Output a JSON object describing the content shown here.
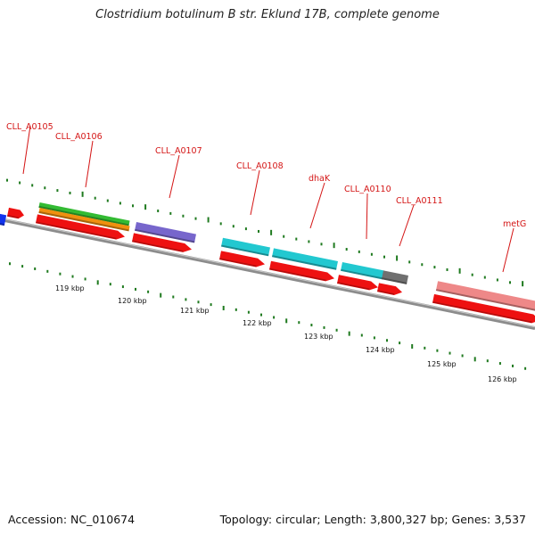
{
  "title": "Clostridium botulinum B str. Eklund 17B, complete genome",
  "footer": {
    "accession": "Accession: NC_010674",
    "topology": "Topology: circular; Length: 3,800,327 bp; Genes: 3,537"
  },
  "colors": {
    "backbone": "#8c8c8c",
    "label": "#d41515",
    "tick": "#1f7a1f",
    "cds": "#ee1111",
    "green": "#33bb33",
    "orange": "#f0900f",
    "purple": "#7766cc",
    "cyan": "#22c8d0",
    "gray": "#707070",
    "pink": "#ee8888",
    "blue": "#1133ee"
  },
  "kbp_labels": [
    "119 kbp",
    "120 kbp",
    "121 kbp",
    "122 kbp",
    "123 kbp",
    "124 kbp",
    "125 kbp",
    "126 kbp"
  ],
  "gene_labels": [
    "CLL_A0105",
    "CLL_A0106",
    "CLL_A0107",
    "CLL_A0108",
    "dhaK",
    "CLL_A0110",
    "CLL_A0111",
    "metG"
  ]
}
